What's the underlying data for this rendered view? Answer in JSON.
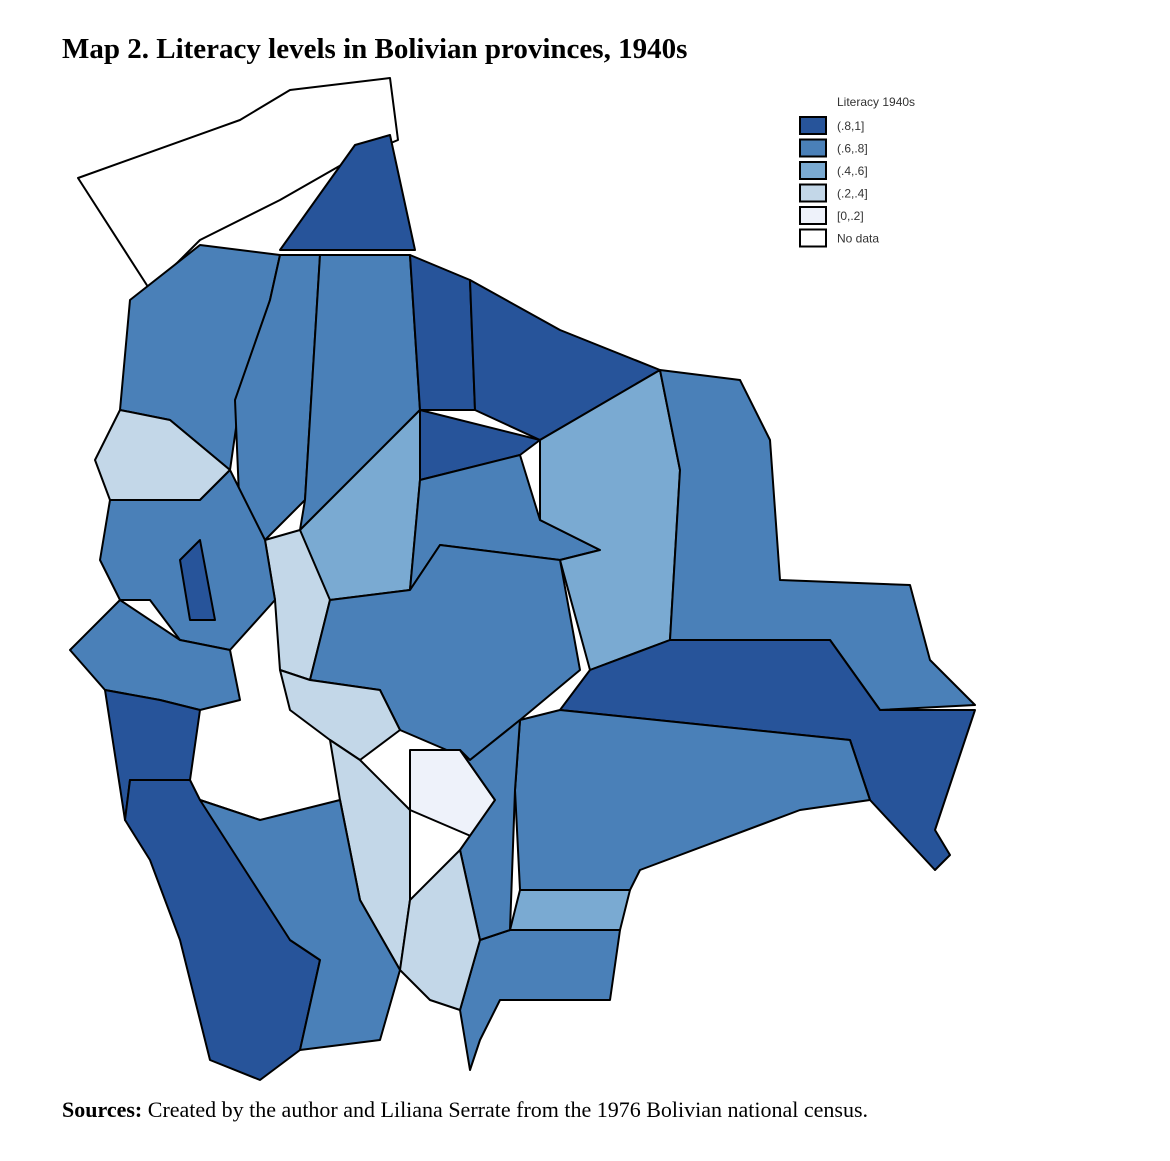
{
  "title": "Map 2. Literacy levels in Bolivian provinces, 1940s",
  "legend": {
    "title": "Literacy 1940s",
    "items": [
      {
        "label": "(.8,1]",
        "color": "#27549a"
      },
      {
        "label": "(.6,.8]",
        "color": "#4a80b8"
      },
      {
        "label": "(.4,.6]",
        "color": "#7aaad2"
      },
      {
        "label": "(.2,.4]",
        "color": "#c3d7e8"
      },
      {
        "label": "[0,.2]",
        "color": "#eef2fa"
      },
      {
        "label": "No data",
        "color": "#ffffff"
      }
    ]
  },
  "source": {
    "label": "Sources:",
    "text": "Created by the author and Liliana Serrate from the 1976 Bolivian national census."
  }
}
